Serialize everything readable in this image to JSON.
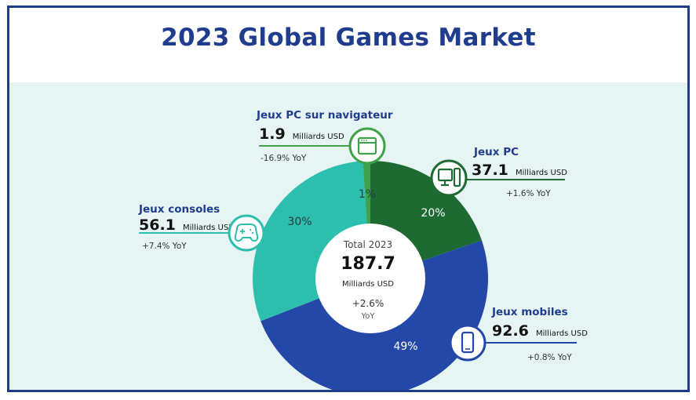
{
  "title": "2023 Global Games Market",
  "chart_data": {
    "type": "donut",
    "title": "2023 Global Games Market",
    "total": {
      "label": "Total 2023",
      "value": "187.7",
      "unit": "Milliards USD",
      "yoy": "+2.6%",
      "yoy_label": "YoY"
    },
    "segments": [
      {
        "name": "Jeux PC",
        "value": 37.1,
        "unit": "Milliards USD",
        "share": "20%",
        "yoy": "+1.6% YoY",
        "color": "#1d6b32",
        "icon": "desktop-computer-icon"
      },
      {
        "name": "Jeux mobiles",
        "value": 92.6,
        "unit": "Milliards USD",
        "share": "49%",
        "yoy": "+0.8% YoY",
        "color": "#2448a8",
        "icon": "smartphone-icon"
      },
      {
        "name": "Jeux consoles",
        "value": 56.1,
        "unit": "Milliards USD",
        "share": "30%",
        "yoy": "+7.4% YoY",
        "color": "#2dbfae",
        "icon": "gamepad-icon"
      },
      {
        "name": "Jeux PC sur navigateur",
        "value": 1.9,
        "unit": "Milliards USD",
        "share": "1%",
        "yoy": "-16.9% YoY",
        "color": "#3fa14a",
        "icon": "browser-window-icon"
      }
    ]
  }
}
